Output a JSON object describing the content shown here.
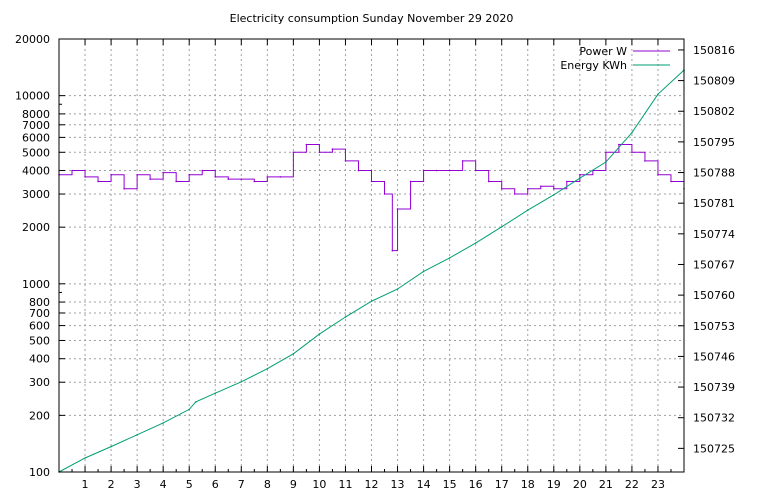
{
  "chart_data": {
    "type": "line",
    "title": "Electricity consumption Sunday November 29 2020",
    "x_axis": {
      "range": [
        0,
        24
      ],
      "ticks": [
        1,
        2,
        3,
        4,
        5,
        6,
        7,
        8,
        9,
        10,
        11,
        12,
        13,
        14,
        15,
        16,
        17,
        18,
        19,
        20,
        21,
        22,
        23
      ],
      "tick_labels": [
        "1",
        "2",
        "3",
        "4",
        "5",
        "6",
        "7",
        "8",
        "9",
        "10",
        "11",
        "12",
        "13",
        "14",
        "15",
        "16",
        "17",
        "18",
        "19",
        "20",
        "21",
        "22",
        "23"
      ]
    },
    "y_axis_left": {
      "scale": "log",
      "range": [
        100,
        20000
      ],
      "ticks": [
        100,
        200,
        300,
        400,
        500,
        600,
        700,
        800,
        1000,
        2000,
        3000,
        4000,
        5000,
        6000,
        7000,
        8000,
        10000,
        20000
      ],
      "tick_labels": [
        "100",
        "200",
        "300",
        "400",
        "500",
        "600",
        "700",
        "800",
        "1000",
        "2000",
        "3000",
        "4000",
        "5000",
        "6000",
        "7000",
        "8000",
        "10000",
        "20000"
      ]
    },
    "y_axis_right": {
      "scale": "linear",
      "range": [
        150719.6,
        150818.5
      ],
      "ticks": [
        150725,
        150732,
        150739,
        150746,
        150753,
        150760,
        150767,
        150774,
        150781,
        150788,
        150795,
        150802,
        150809,
        150816
      ],
      "tick_labels": [
        "150725",
        "150732",
        "150739",
        "150746",
        "150753",
        "150760",
        "150767",
        "150774",
        "150781",
        "150788",
        "150795",
        "150802",
        "150809",
        "150816"
      ]
    },
    "grid": true,
    "legend_position": "top-right",
    "series": [
      {
        "name": "Power W",
        "color": "#9400d3",
        "axis": "left",
        "x": [
          0.0,
          0.5,
          1.0,
          1.5,
          2.0,
          2.5,
          3.0,
          3.5,
          4.0,
          4.5,
          5.0,
          5.5,
          6.0,
          6.5,
          7.0,
          7.5,
          8.0,
          8.5,
          9.0,
          9.5,
          10.0,
          10.5,
          11.0,
          11.5,
          12.0,
          12.5,
          12.8,
          13.0,
          13.5,
          14.0,
          14.5,
          15.0,
          15.5,
          16.0,
          16.5,
          17.0,
          17.5,
          18.0,
          18.5,
          19.0,
          19.5,
          20.0,
          20.5,
          21.0,
          21.5,
          22.0,
          22.5,
          23.0,
          23.5,
          24.0
        ],
        "values": [
          3800,
          4000,
          3700,
          3500,
          3800,
          3200,
          3800,
          3600,
          3900,
          3500,
          3800,
          4000,
          3700,
          3600,
          3600,
          3500,
          3700,
          3700,
          5000,
          5500,
          5000,
          5200,
          4500,
          4000,
          3500,
          3000,
          1500,
          2500,
          3500,
          4000,
          4000,
          4000,
          4500,
          4000,
          3500,
          3200,
          3000,
          3200,
          3300,
          3200,
          3500,
          3800,
          4000,
          5000,
          5500,
          5000,
          4500,
          3800,
          3500,
          3200
        ]
      },
      {
        "name": "Energy KWh",
        "color": "#009e73",
        "axis": "right",
        "x": [
          0,
          1,
          2,
          3,
          4,
          5,
          5.25,
          6,
          7,
          8,
          9,
          10,
          11,
          12,
          13,
          14,
          15,
          16,
          17,
          18,
          19,
          20,
          21,
          22,
          23,
          24
        ],
        "values": [
          150719.6,
          150722.8,
          150725.4,
          150728.1,
          150730.8,
          150733.9,
          150735.6,
          150737.6,
          150740.2,
          150743.2,
          150746.6,
          150751.1,
          150755.0,
          150758.6,
          150761.4,
          150765.4,
          150768.5,
          150771.9,
          150775.6,
          150779.4,
          150782.9,
          150786.7,
          150790.4,
          150797.1,
          150805.9,
          150811.4
        ]
      }
    ]
  }
}
